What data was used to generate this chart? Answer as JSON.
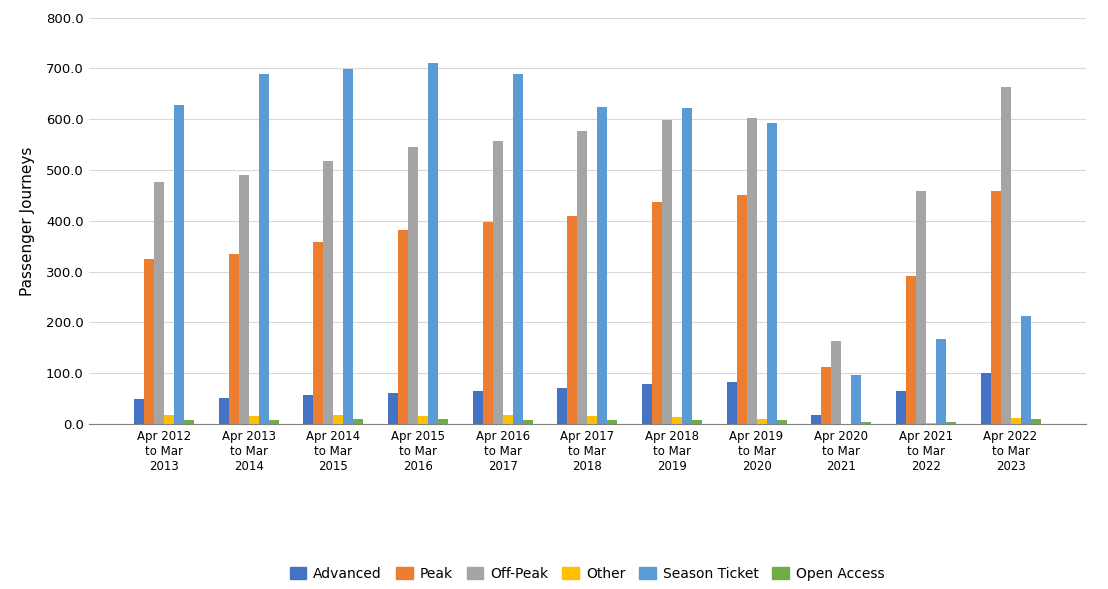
{
  "categories": [
    "Apr 2012\nto Mar\n2013",
    "Apr 2013\nto Mar\n2014",
    "Apr 2014\nto Mar\n2015",
    "Apr 2015\nto Mar\n2016",
    "Apr 2016\nto Mar\n2017",
    "Apr 2017\nto Mar\n2018",
    "Apr 2018\nto Mar\n2019",
    "Apr 2019\nto Mar\n2020",
    "Apr 2020\nto Mar\n2021",
    "Apr 2021\nto Mar\n2022",
    "Apr 2022\nto Mar\n2023"
  ],
  "series": {
    "Advanced": [
      50,
      52,
      58,
      62,
      66,
      72,
      78,
      82,
      18,
      66,
      100
    ],
    "Peak": [
      325,
      335,
      358,
      382,
      398,
      410,
      438,
      450,
      112,
      292,
      458
    ],
    "Off-Peak": [
      476,
      490,
      518,
      545,
      557,
      577,
      598,
      603,
      163,
      458,
      663
    ],
    "Other": [
      17,
      16,
      17,
      15,
      17,
      15,
      14,
      10,
      0,
      3,
      12
    ],
    "Season Ticket": [
      628,
      690,
      698,
      710,
      690,
      625,
      622,
      592,
      96,
      168,
      212
    ],
    "Open Access": [
      9,
      9,
      10,
      10,
      9,
      9,
      9,
      9,
      5,
      5,
      10
    ]
  },
  "colors": {
    "Advanced": "#4472c4",
    "Peak": "#ed7d31",
    "Off-Peak": "#a5a5a5",
    "Other": "#ffc000",
    "Season Ticket": "#5b9bd5",
    "Open Access": "#70ad47"
  },
  "ylabel": "Passenger Journeys",
  "ylim": [
    0,
    800
  ],
  "yticks": [
    0,
    100,
    200,
    300,
    400,
    500,
    600,
    700,
    800
  ],
  "ytick_labels": [
    "0.0",
    "100.0",
    "200.0",
    "300.0",
    "400.0",
    "500.0",
    "600.0",
    "700.0",
    "800.0"
  ],
  "legend_order": [
    "Advanced",
    "Peak",
    "Off-Peak",
    "Other",
    "Season Ticket",
    "Open Access"
  ],
  "figsize": [
    11.08,
    5.89
  ],
  "dpi": 100,
  "bg_color": "#ffffff",
  "plot_bg_color": "#ffffff",
  "grid_color": "#d9d9d9"
}
